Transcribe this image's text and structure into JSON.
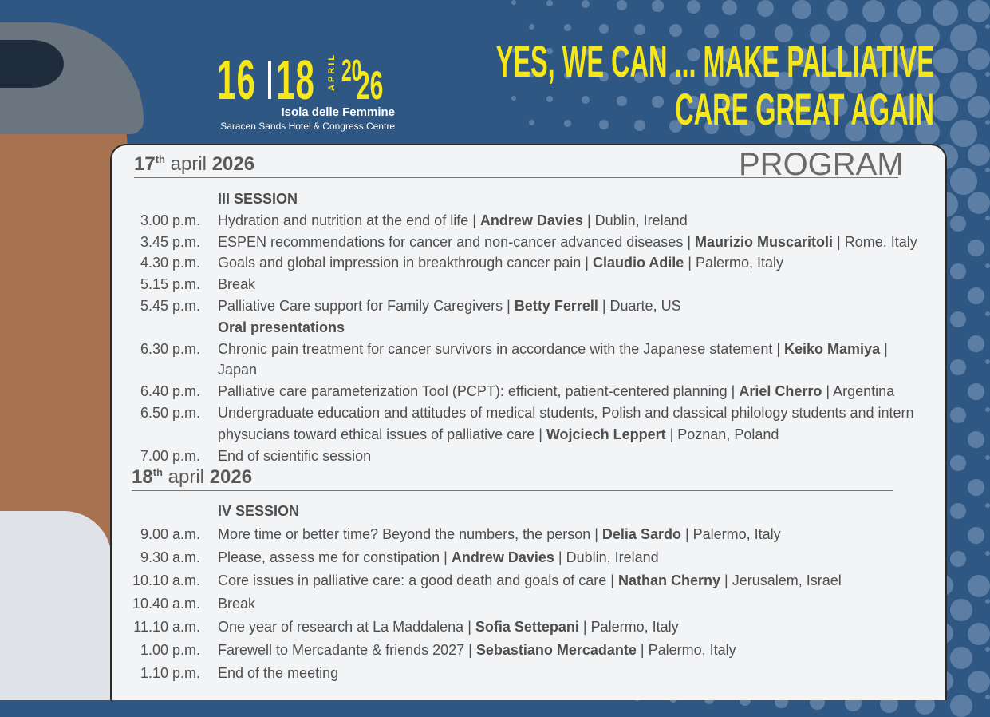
{
  "header": {
    "day_start": "16",
    "day_end": "18",
    "month": "APRIL",
    "year_a": "20",
    "year_b": "26",
    "venue": "Isola delle Femmine",
    "venue_detail": "Saracen Sands Hotel & Congress Centre",
    "slogan_line1": "YES, WE CAN ... MAKE PALLIATIVE",
    "slogan_line2": "CARE GREAT AGAIN",
    "title": "PROGRAM"
  },
  "colors": {
    "background": "#2f5783",
    "accent": "#f6e71a",
    "panel": "#f3f4f6",
    "text": "#4e4e4e"
  },
  "days": [
    {
      "day": "17",
      "sup": "th",
      "month": "april",
      "year": "2026",
      "items": [
        {
          "time": "",
          "title": "III SESSION",
          "speaker": "",
          "place": ""
        },
        {
          "time": "3.00 p.m.",
          "title": "Hydration and nutrition at the end of life | ",
          "speaker": "Andrew Davies",
          "place": " | Dublin, Ireland"
        },
        {
          "time": "3.45 p.m.",
          "title": "ESPEN recommendations for cancer and non-cancer advanced diseases | ",
          "speaker": "Maurizio Muscaritoli",
          "place": " | Rome, Italy"
        },
        {
          "time": "4.30 p.m.",
          "title": "Goals and global impression in breakthrough cancer pain | ",
          "speaker": "Claudio Adile",
          "place": " | Palermo, Italy"
        },
        {
          "time": "5.15 p.m.",
          "title": "Break",
          "speaker": "",
          "place": ""
        },
        {
          "time": "5.45 p.m.",
          "title": "Palliative Care support for Family Caregivers | ",
          "speaker": "Betty Ferrell",
          "place": " | Duarte, US"
        },
        {
          "time": "",
          "title": "Oral presentations",
          "speaker": "",
          "place": ""
        },
        {
          "time": "6.30 p.m.",
          "title": "Chronic pain treatment for cancer survivors in accordance with the Japanese statement | ",
          "speaker": "Keiko Mamiya",
          "place": " | Japan"
        },
        {
          "time": "6.40 p.m.",
          "title": "Palliative care parameterization Tool (PCPT): efficient, patient-centered planning | ",
          "speaker": "Ariel Cherro",
          "place": " | Argentina"
        },
        {
          "time": "6.50 p.m.",
          "title": "Undergraduate education and attitudes of medical students, Polish and classical philology students and intern physucians toward ethical issues of palliative care | ",
          "speaker": "Wojciech Leppert",
          "place": " | Poznan, Poland"
        },
        {
          "time": "7.00 p.m.",
          "title": "End of scientific session",
          "speaker": "",
          "place": ""
        }
      ]
    },
    {
      "day": "18",
      "sup": "th",
      "month": "april",
      "year": "2026",
      "items": [
        {
          "time": "",
          "title": "IV SESSION",
          "speaker": "",
          "place": ""
        },
        {
          "time": "9.00 a.m.",
          "title": "More time or better time? Beyond the numbers, the person | ",
          "speaker": "Delia Sardo",
          "place": " | Palermo, Italy"
        },
        {
          "time": "9.30 a.m.",
          "title": "Please, assess me for constipation | ",
          "speaker": "Andrew Davies",
          "place": " | Dublin, Ireland"
        },
        {
          "time": "10.10 a.m.",
          "title": " Core issues in palliative care: a good death and goals of care | ",
          "speaker": "Nathan Cherny",
          "place": " | Jerusalem, Israel"
        },
        {
          "time": "10.40 a.m.",
          "title": "Break",
          "speaker": "",
          "place": ""
        },
        {
          "time": "11.10 a.m.",
          "title": "One year of research at La Maddalena | ",
          "speaker": "Sofia Settepani",
          "place": " | Palermo, Italy"
        },
        {
          "time": "1.00 p.m.",
          "title": "Farewell to Mercadante & friends 2027 | ",
          "speaker": "Sebastiano Mercadante",
          "place": " | Palermo, Italy"
        },
        {
          "time": "1.10 p.m.",
          "title": "End of the meeting",
          "speaker": "",
          "place": ""
        }
      ]
    }
  ]
}
